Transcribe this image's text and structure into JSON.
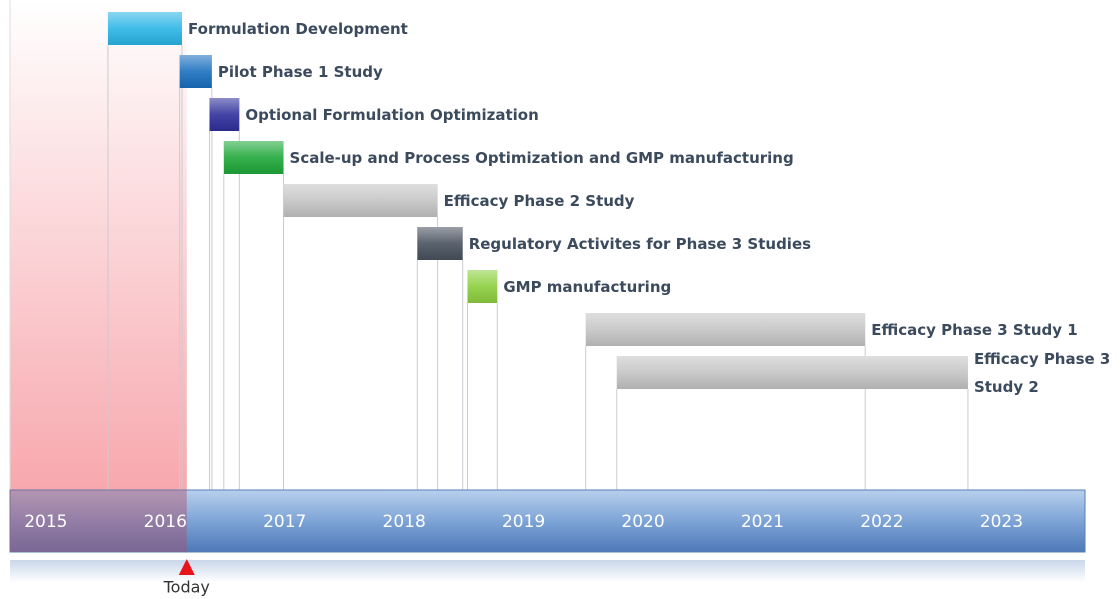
{
  "chart_data": {
    "type": "gantt",
    "tasks": [
      {
        "name": "Formulation Development",
        "start": 2015.82,
        "end": 2016.44,
        "color": "#2bb5e6"
      },
      {
        "name": "Pilot Phase 1 Study",
        "start": 2016.42,
        "end": 2016.69,
        "color": "#1a6fbf"
      },
      {
        "name": "Optional Formulation Optimization",
        "start": 2016.67,
        "end": 2016.92,
        "color": "#2f2f9c"
      },
      {
        "name": "Scale-up and Process Optimization and GMP manufacturing",
        "start": 2016.79,
        "end": 2017.29,
        "color": "#1fa83a"
      },
      {
        "name": "Efficacy Phase 2 Study",
        "start": 2017.29,
        "end": 2018.58,
        "color": "#c4c4c4"
      },
      {
        "name": "Regulatory Activites for Phase 3 Studies",
        "start": 2018.41,
        "end": 2018.79,
        "color": "#48515e"
      },
      {
        "name": "GMP manufacturing",
        "start": 2018.83,
        "end": 2019.08,
        "color": "#8ccf3e"
      },
      {
        "name": "Efficacy Phase 3 Study 1",
        "start": 2019.82,
        "end": 2022.16,
        "color": "#c4c4c4"
      },
      {
        "name": "Efficacy Phase 3 Study 2",
        "start": 2020.08,
        "end": 2023.02,
        "color": "#c4c4c4"
      }
    ],
    "today": {
      "label": "Today",
      "value": 2016.48,
      "color": "#e8141c"
    },
    "xlim": [
      2015,
      2024
    ],
    "xticks": [
      2015,
      2016,
      2017,
      2018,
      2019,
      2020,
      2021,
      2022,
      2023
    ]
  }
}
